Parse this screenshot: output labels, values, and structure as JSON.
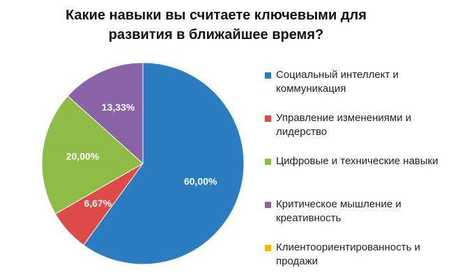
{
  "chart_data": {
    "type": "pie",
    "title": "Какие навыки вы считаете ключевыми  для развития в ближайшее время?",
    "categories": [
      "Социальный интеллект и коммуникация",
      "Управление изменениями и лидерство",
      "Цифровые и технические навыки",
      "Критическое мышление и креативность",
      "Клиентоориентированность и продажи"
    ],
    "values": [
      60,
      6.67,
      20,
      13.33,
      0
    ],
    "value_labels": [
      "60,00%",
      "6,67%",
      "20,00%",
      "13,33%",
      null
    ],
    "colors": [
      "#2b7cc0",
      "#de4a48",
      "#8fbc46",
      "#8b63a7",
      "#f6b800"
    ],
    "legend": "right"
  }
}
